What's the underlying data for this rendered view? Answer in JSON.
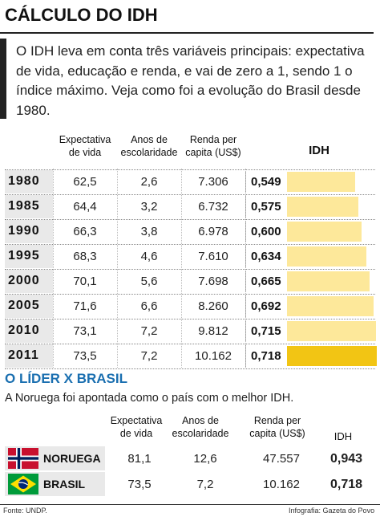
{
  "title": "CÁLCULO DO IDH",
  "intro": "O IDH leva em conta três variáveis principais: expectativa de vida, educação e renda, e vai de zero a 1, sendo 1 o índice máximo. Veja como foi a evolução do Brasil desde 1980.",
  "table1": {
    "headers": {
      "life": "Expectativa de vida",
      "school": "Anos de escolaridade",
      "income": "Renda per capita (US$)",
      "idh": "IDH"
    },
    "rows": [
      {
        "year": "1980",
        "life": "62,5",
        "school": "2,6",
        "income": "7.306",
        "idh": "0,549"
      },
      {
        "year": "1985",
        "life": "64,4",
        "school": "3,2",
        "income": "6.732",
        "idh": "0,575"
      },
      {
        "year": "1990",
        "life": "66,3",
        "school": "3,8",
        "income": "6.978",
        "idh": "0,600"
      },
      {
        "year": "1995",
        "life": "68,3",
        "school": "4,6",
        "income": "7.610",
        "idh": "0,634"
      },
      {
        "year": "2000",
        "life": "70,1",
        "school": "5,6",
        "income": "7.698",
        "idh": "0,665"
      },
      {
        "year": "2005",
        "life": "71,6",
        "school": "6,6",
        "income": "8.260",
        "idh": "0,692"
      },
      {
        "year": "2010",
        "life": "73,1",
        "school": "7,2",
        "income": "9.812",
        "idh": "0,715"
      },
      {
        "year": "2011",
        "life": "73,5",
        "school": "7,2",
        "income": "10.162",
        "idh": "0,718"
      }
    ]
  },
  "chart_data": {
    "type": "bar",
    "categories": [
      "1980",
      "1985",
      "1990",
      "1995",
      "2000",
      "2005",
      "2010",
      "2011"
    ],
    "values": [
      0.549,
      0.575,
      0.6,
      0.634,
      0.665,
      0.692,
      0.715,
      0.718
    ],
    "title": "IDH",
    "xlabel": "",
    "ylabel": "",
    "highlight": "2011",
    "colors": {
      "bar": "#fde89a",
      "highlight": "#f2c514"
    }
  },
  "section2": {
    "title": "O LÍDER X BRASIL",
    "subtitle": "A Noruega foi apontada como o país com o melhor IDH.",
    "headers": {
      "life": "Expectativa de vida",
      "school": "Anos de escolaridade",
      "income": "Renda per capita (US$)",
      "idh": "IDH"
    },
    "rows": [
      {
        "country": "NORUEGA",
        "flag": "norway-flag-icon",
        "life": "81,1",
        "school": "12,6",
        "income": "47.557",
        "idh": "0,943"
      },
      {
        "country": "BRASIL",
        "flag": "brazil-flag-icon",
        "life": "73,5",
        "school": "7,2",
        "income": "10.162",
        "idh": "0,718"
      }
    ]
  },
  "footer": {
    "source": "Fonte: UNDP.",
    "credit": "Infografia: Gazeta do Povo"
  }
}
